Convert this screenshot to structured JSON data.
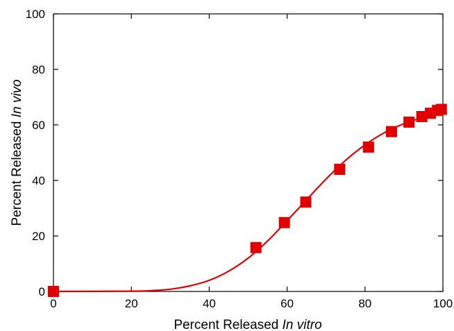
{
  "chart_data": {
    "type": "scatter",
    "title": "",
    "xlabel_prefix": "Percent Released ",
    "xlabel_italic": "In vitro",
    "ylabel_prefix": "Percent Released ",
    "ylabel_italic": "In vivo",
    "xlim": [
      0,
      100
    ],
    "ylim": [
      0,
      100
    ],
    "xticks": [
      0,
      20,
      40,
      60,
      80,
      100
    ],
    "yticks": [
      0,
      20,
      40,
      60,
      80,
      100
    ],
    "xtick_labels": [
      "0",
      "20",
      "40",
      "60",
      "80",
      "100"
    ],
    "ytick_labels": [
      "0",
      "20",
      "40",
      "60",
      "80",
      "100"
    ],
    "grid": false,
    "series": [
      {
        "marker": "square",
        "color": "#e00000",
        "points": [
          {
            "x": 0,
            "y": 0
          },
          {
            "x": 52,
            "y": 15.8
          },
          {
            "x": 59.3,
            "y": 24.8
          },
          {
            "x": 64.8,
            "y": 32.2
          },
          {
            "x": 73.5,
            "y": 44
          },
          {
            "x": 80.9,
            "y": 52
          },
          {
            "x": 86.8,
            "y": 57.6
          },
          {
            "x": 91.3,
            "y": 61
          },
          {
            "x": 94.6,
            "y": 63
          },
          {
            "x": 96.8,
            "y": 64.2
          },
          {
            "x": 98.6,
            "y": 65.2
          },
          {
            "x": 99.6,
            "y": 65.6
          }
        ]
      }
    ],
    "fit_curve": {
      "color": "#e00000",
      "points": [
        {
          "x": 0,
          "y": 0
        },
        {
          "x": 20,
          "y": 0.1
        },
        {
          "x": 25,
          "y": 0.3
        },
        {
          "x": 30,
          "y": 0.8
        },
        {
          "x": 35,
          "y": 2.0
        },
        {
          "x": 40,
          "y": 4.0
        },
        {
          "x": 45,
          "y": 7.3
        },
        {
          "x": 50,
          "y": 12.0
        },
        {
          "x": 55,
          "y": 18.2
        },
        {
          "x": 60,
          "y": 25.5
        },
        {
          "x": 65,
          "y": 33.0
        },
        {
          "x": 70,
          "y": 40.5
        },
        {
          "x": 75,
          "y": 47.2
        },
        {
          "x": 80,
          "y": 52.8
        },
        {
          "x": 85,
          "y": 57.2
        },
        {
          "x": 90,
          "y": 60.4
        },
        {
          "x": 95,
          "y": 62.7
        },
        {
          "x": 100,
          "y": 64.5
        }
      ]
    }
  }
}
